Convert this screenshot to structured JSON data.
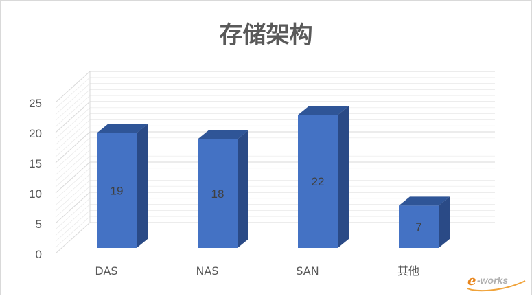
{
  "chart_data": {
    "type": "bar",
    "title": "存储架构",
    "categories": [
      "DAS",
      "NAS",
      "SAN",
      "其他"
    ],
    "values": [
      19,
      18,
      22,
      7
    ],
    "data_labels": [
      "19",
      "18",
      "22",
      "7"
    ],
    "y_ticks": [
      "0",
      "5",
      "10",
      "15",
      "20",
      "25"
    ],
    "ylim": [
      0,
      25
    ],
    "xlabel": "",
    "ylabel": "",
    "grid": true,
    "style": "3d-column",
    "colors": {
      "front": "#4472c4",
      "top": "#2f5597",
      "side": "#2a4a86",
      "grid": "#d9d9d9",
      "text": "#595959"
    }
  },
  "watermark": {
    "text": "e-works"
  }
}
